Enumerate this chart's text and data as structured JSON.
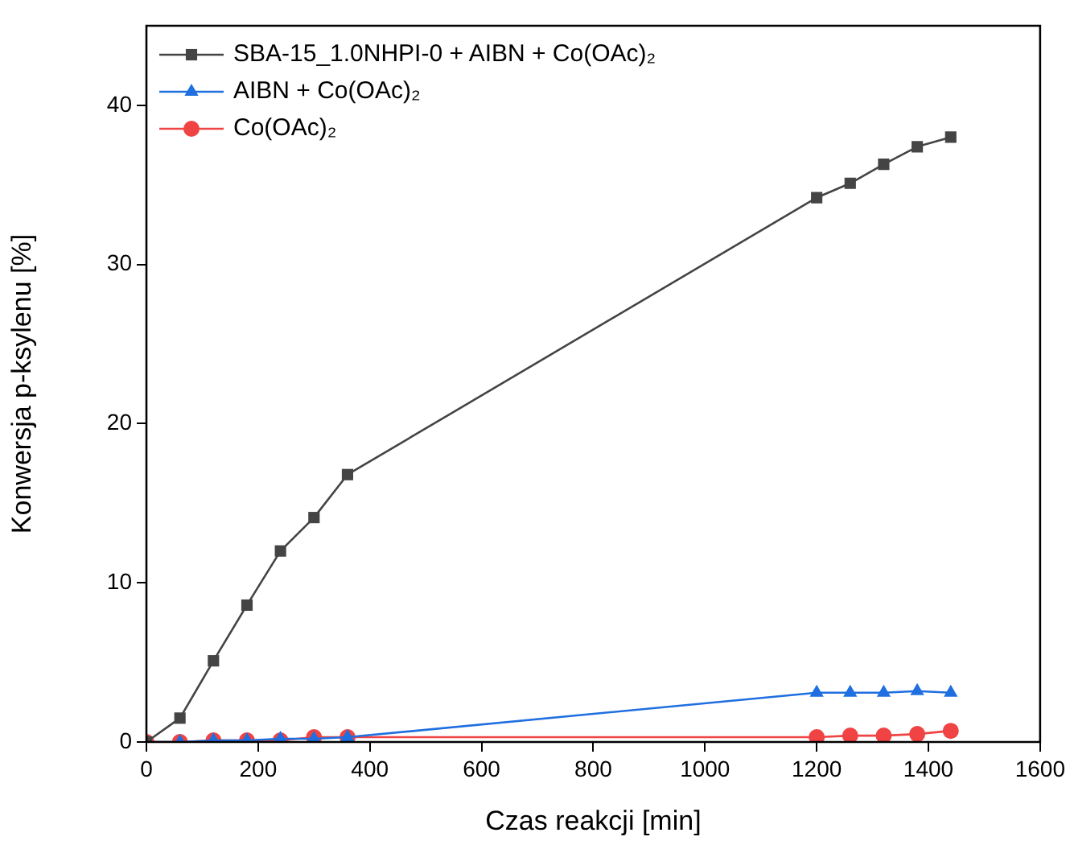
{
  "chart_data": {
    "type": "line",
    "xlabel": "Czas reakcji [min]",
    "ylabel": "Konwersja p-ksylenu [%]",
    "x": [
      0,
      60,
      120,
      180,
      240,
      300,
      360,
      1200,
      1260,
      1320,
      1380,
      1440
    ],
    "series": [
      {
        "name": "SBA-15_1.0NHPI-0 + AIBN + Co(OAc)₂",
        "color": "#444444",
        "marker": "square",
        "values": [
          0,
          1.5,
          5.1,
          8.6,
          12.0,
          14.1,
          16.8,
          34.2,
          35.1,
          36.3,
          37.4,
          38.0
        ]
      },
      {
        "name": "AIBN + Co(OAc)₂",
        "color": "#1f6fe0",
        "marker": "triangle",
        "values": [
          0,
          0,
          0.1,
          0.1,
          0.2,
          0.2,
          0.3,
          3.1,
          3.1,
          3.1,
          3.2,
          3.1
        ]
      },
      {
        "name": "Co(OAc)₂",
        "color": "#f04343",
        "marker": "circle",
        "values": [
          0,
          0,
          0.1,
          0.1,
          0.1,
          0.3,
          0.3,
          0.3,
          0.4,
          0.4,
          0.5,
          0.7
        ]
      }
    ],
    "xlim": [
      0,
      1600
    ],
    "xticks": [
      0,
      200,
      400,
      600,
      800,
      1000,
      1200,
      1400,
      1600
    ],
    "ylim": [
      0,
      45
    ],
    "yticks": [
      0,
      10,
      20,
      30,
      40
    ],
    "grid": false,
    "legend": "top left",
    "line_style": "solid"
  }
}
